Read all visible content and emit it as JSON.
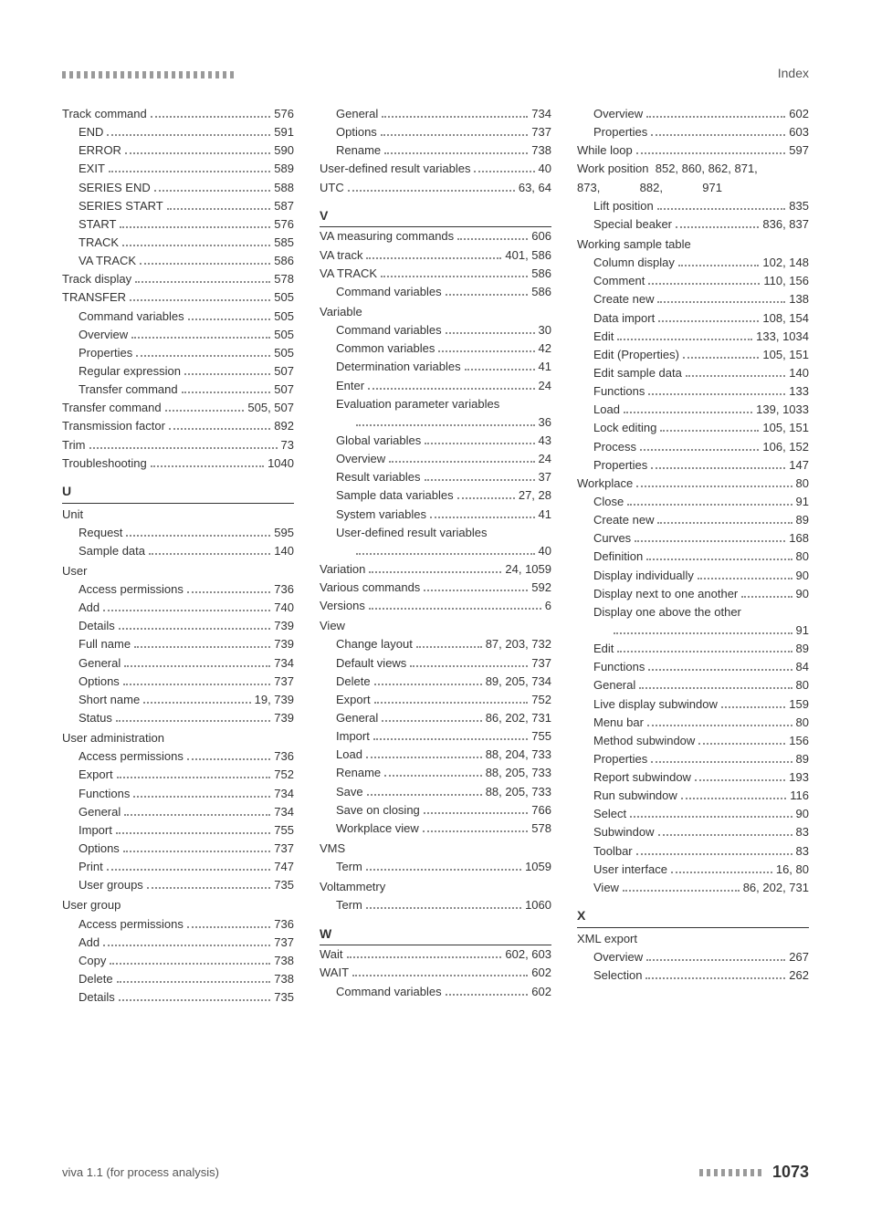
{
  "header": {
    "index_label": "Index"
  },
  "footer": {
    "left": "viva 1.1 (for process analysis)",
    "page_number": "1073"
  },
  "columns": [
    {
      "items": [
        {
          "type": "row",
          "indent": 0,
          "label": "Track command",
          "page": "576"
        },
        {
          "type": "row",
          "indent": 1,
          "label": "END",
          "page": "591"
        },
        {
          "type": "row",
          "indent": 1,
          "label": "ERROR",
          "page": "590"
        },
        {
          "type": "row",
          "indent": 1,
          "label": "EXIT",
          "page": "589"
        },
        {
          "type": "row",
          "indent": 1,
          "label": "SERIES END",
          "page": "588"
        },
        {
          "type": "row",
          "indent": 1,
          "label": "SERIES START",
          "page": "587"
        },
        {
          "type": "row",
          "indent": 1,
          "label": "START",
          "page": "576"
        },
        {
          "type": "row",
          "indent": 1,
          "label": "TRACK",
          "page": "585"
        },
        {
          "type": "row",
          "indent": 1,
          "label": "VA TRACK",
          "page": "586"
        },
        {
          "type": "row",
          "indent": 0,
          "label": "Track display",
          "page": "578"
        },
        {
          "type": "row",
          "indent": 0,
          "label": "TRANSFER",
          "page": "505"
        },
        {
          "type": "row",
          "indent": 1,
          "label": "Command variables",
          "page": "505"
        },
        {
          "type": "row",
          "indent": 1,
          "label": "Overview",
          "page": "505"
        },
        {
          "type": "row",
          "indent": 1,
          "label": "Properties",
          "page": "505"
        },
        {
          "type": "row",
          "indent": 1,
          "label": "Regular expression",
          "page": "507"
        },
        {
          "type": "row",
          "indent": 1,
          "label": "Transfer command",
          "page": "507"
        },
        {
          "type": "row",
          "indent": 0,
          "label": "Transfer command",
          "page": "505, 507"
        },
        {
          "type": "row",
          "indent": 0,
          "label": "Transmission factor",
          "page": "892"
        },
        {
          "type": "row",
          "indent": 0,
          "label": "Trim",
          "page": "73"
        },
        {
          "type": "row",
          "indent": 0,
          "label": "Troubleshooting",
          "page": "1040"
        },
        {
          "type": "letter",
          "text": "U"
        },
        {
          "type": "group",
          "indent": 0,
          "label": "Unit"
        },
        {
          "type": "row",
          "indent": 1,
          "label": "Request",
          "page": "595"
        },
        {
          "type": "row",
          "indent": 1,
          "label": "Sample data",
          "page": "140"
        },
        {
          "type": "group",
          "indent": 0,
          "label": "User"
        },
        {
          "type": "row",
          "indent": 1,
          "label": "Access permissions",
          "page": "736"
        },
        {
          "type": "row",
          "indent": 1,
          "label": "Add",
          "page": "740"
        },
        {
          "type": "row",
          "indent": 1,
          "label": "Details",
          "page": "739"
        },
        {
          "type": "row",
          "indent": 1,
          "label": "Full name",
          "page": "739"
        },
        {
          "type": "row",
          "indent": 1,
          "label": "General",
          "page": "734"
        },
        {
          "type": "row",
          "indent": 1,
          "label": "Options",
          "page": "737"
        },
        {
          "type": "row",
          "indent": 1,
          "label": "Short name",
          "page": "19, 739"
        },
        {
          "type": "row",
          "indent": 1,
          "label": "Status",
          "page": "739"
        },
        {
          "type": "group",
          "indent": 0,
          "label": "User administration"
        },
        {
          "type": "row",
          "indent": 1,
          "label": "Access permissions",
          "page": "736"
        },
        {
          "type": "row",
          "indent": 1,
          "label": "Export",
          "page": "752"
        },
        {
          "type": "row",
          "indent": 1,
          "label": "Functions",
          "page": "734"
        },
        {
          "type": "row",
          "indent": 1,
          "label": "General",
          "page": "734"
        },
        {
          "type": "row",
          "indent": 1,
          "label": "Import",
          "page": "755"
        },
        {
          "type": "row",
          "indent": 1,
          "label": "Options",
          "page": "737"
        },
        {
          "type": "row",
          "indent": 1,
          "label": "Print",
          "page": "747"
        },
        {
          "type": "row",
          "indent": 1,
          "label": "User groups",
          "page": "735"
        },
        {
          "type": "group",
          "indent": 0,
          "label": "User group"
        },
        {
          "type": "row",
          "indent": 1,
          "label": "Access permissions",
          "page": "736"
        },
        {
          "type": "row",
          "indent": 1,
          "label": "Add",
          "page": "737"
        },
        {
          "type": "row",
          "indent": 1,
          "label": "Copy",
          "page": "738"
        },
        {
          "type": "row",
          "indent": 1,
          "label": "Delete",
          "page": "738"
        },
        {
          "type": "row",
          "indent": 1,
          "label": "Details",
          "page": "735"
        }
      ]
    },
    {
      "items": [
        {
          "type": "row",
          "indent": 1,
          "label": "General",
          "page": "734"
        },
        {
          "type": "row",
          "indent": 1,
          "label": "Options",
          "page": "737"
        },
        {
          "type": "row",
          "indent": 1,
          "label": "Rename",
          "page": "738"
        },
        {
          "type": "row",
          "indent": 0,
          "label": "User-defined result variables",
          "page": "40"
        },
        {
          "type": "row",
          "indent": 0,
          "label": "UTC",
          "page": "63, 64"
        },
        {
          "type": "letter",
          "text": "V"
        },
        {
          "type": "row",
          "indent": 0,
          "label": "VA measuring commands",
          "page": "606"
        },
        {
          "type": "row",
          "indent": 0,
          "label": "VA track",
          "page": "401, 586"
        },
        {
          "type": "row",
          "indent": 0,
          "label": "VA TRACK",
          "page": "586"
        },
        {
          "type": "row",
          "indent": 1,
          "label": "Command variables",
          "page": "586"
        },
        {
          "type": "group",
          "indent": 0,
          "label": "Variable"
        },
        {
          "type": "row",
          "indent": 1,
          "label": "Command variables",
          "page": "30"
        },
        {
          "type": "row",
          "indent": 1,
          "label": "Common variables",
          "page": "42"
        },
        {
          "type": "row",
          "indent": 1,
          "label": "Determination variables",
          "page": "41"
        },
        {
          "type": "row",
          "indent": 1,
          "label": "Enter",
          "page": "24"
        },
        {
          "type": "wrap",
          "indent": 1,
          "label": "Evaluation parameter variables",
          "page": "36"
        },
        {
          "type": "row",
          "indent": 1,
          "label": "Global variables",
          "page": "43"
        },
        {
          "type": "row",
          "indent": 1,
          "label": "Overview",
          "page": "24"
        },
        {
          "type": "row",
          "indent": 1,
          "label": "Result variables",
          "page": "37"
        },
        {
          "type": "row",
          "indent": 1,
          "label": "Sample data variables",
          "page": "27, 28"
        },
        {
          "type": "row",
          "indent": 1,
          "label": "System variables",
          "page": "41"
        },
        {
          "type": "wrap",
          "indent": 1,
          "label": "User-defined result variables",
          "page": "40"
        },
        {
          "type": "row",
          "indent": 0,
          "label": "Variation",
          "page": "24, 1059"
        },
        {
          "type": "row",
          "indent": 0,
          "label": "Various commands",
          "page": "592"
        },
        {
          "type": "row",
          "indent": 0,
          "label": "Versions",
          "page": "6"
        },
        {
          "type": "group",
          "indent": 0,
          "label": "View"
        },
        {
          "type": "row",
          "indent": 1,
          "label": "Change layout",
          "page": "87, 203, 732"
        },
        {
          "type": "row",
          "indent": 1,
          "label": "Default views",
          "page": "737"
        },
        {
          "type": "row",
          "indent": 1,
          "label": "Delete",
          "page": "89, 205, 734"
        },
        {
          "type": "row",
          "indent": 1,
          "label": "Export",
          "page": "752"
        },
        {
          "type": "row",
          "indent": 1,
          "label": "General",
          "page": "86, 202, 731"
        },
        {
          "type": "row",
          "indent": 1,
          "label": "Import",
          "page": "755"
        },
        {
          "type": "row",
          "indent": 1,
          "label": "Load",
          "page": "88, 204, 733"
        },
        {
          "type": "row",
          "indent": 1,
          "label": "Rename",
          "page": "88, 205, 733"
        },
        {
          "type": "row",
          "indent": 1,
          "label": "Save",
          "page": "88, 205, 733"
        },
        {
          "type": "row",
          "indent": 1,
          "label": "Save on closing",
          "page": "766"
        },
        {
          "type": "row",
          "indent": 1,
          "label": "Workplace view",
          "page": "578"
        },
        {
          "type": "group",
          "indent": 0,
          "label": "VMS"
        },
        {
          "type": "row",
          "indent": 1,
          "label": "Term",
          "page": "1059"
        },
        {
          "type": "group",
          "indent": 0,
          "label": "Voltammetry"
        },
        {
          "type": "row",
          "indent": 1,
          "label": "Term",
          "page": "1060"
        },
        {
          "type": "letter",
          "text": "W"
        },
        {
          "type": "row",
          "indent": 0,
          "label": "Wait",
          "page": "602, 603"
        },
        {
          "type": "row",
          "indent": 0,
          "label": "WAIT",
          "page": "602"
        },
        {
          "type": "row",
          "indent": 1,
          "label": "Command variables",
          "page": "602"
        }
      ]
    },
    {
      "items": [
        {
          "type": "row",
          "indent": 1,
          "label": "Overview",
          "page": "602"
        },
        {
          "type": "row",
          "indent": 1,
          "label": "Properties",
          "page": "603"
        },
        {
          "type": "row",
          "indent": 0,
          "label": "While loop",
          "page": "597"
        },
        {
          "type": "plain",
          "indent": 0,
          "text": "Work position  852, 860, 862, 871,"
        },
        {
          "type": "plain",
          "indent": 0,
          "text": "873,            882,            971"
        },
        {
          "type": "row",
          "indent": 1,
          "label": "Lift position",
          "page": "835"
        },
        {
          "type": "row",
          "indent": 1,
          "label": "Special beaker",
          "page": "836, 837"
        },
        {
          "type": "group",
          "indent": 0,
          "label": "Working sample table"
        },
        {
          "type": "row",
          "indent": 1,
          "label": "Column display",
          "page": "102, 148"
        },
        {
          "type": "row",
          "indent": 1,
          "label": "Comment",
          "page": "110, 156"
        },
        {
          "type": "row",
          "indent": 1,
          "label": "Create new",
          "page": "138"
        },
        {
          "type": "row",
          "indent": 1,
          "label": "Data import",
          "page": "108, 154"
        },
        {
          "type": "row",
          "indent": 1,
          "label": "Edit",
          "page": "133, 1034"
        },
        {
          "type": "row",
          "indent": 1,
          "label": "Edit (Properties)",
          "page": "105, 151"
        },
        {
          "type": "row",
          "indent": 1,
          "label": "Edit sample data",
          "page": "140"
        },
        {
          "type": "row",
          "indent": 1,
          "label": "Functions",
          "page": "133"
        },
        {
          "type": "row",
          "indent": 1,
          "label": "Load",
          "page": "139, 1033"
        },
        {
          "type": "row",
          "indent": 1,
          "label": "Lock editing",
          "page": "105, 151"
        },
        {
          "type": "row",
          "indent": 1,
          "label": "Process",
          "page": "106, 152"
        },
        {
          "type": "row",
          "indent": 1,
          "label": "Properties",
          "page": "147"
        },
        {
          "type": "row",
          "indent": 0,
          "label": "Workplace",
          "page": "80"
        },
        {
          "type": "row",
          "indent": 1,
          "label": "Close",
          "page": "91"
        },
        {
          "type": "row",
          "indent": 1,
          "label": "Create new",
          "page": "89"
        },
        {
          "type": "row",
          "indent": 1,
          "label": "Curves",
          "page": "168"
        },
        {
          "type": "row",
          "indent": 1,
          "label": "Definition",
          "page": "80"
        },
        {
          "type": "row",
          "indent": 1,
          "label": "Display individually",
          "page": "90"
        },
        {
          "type": "row",
          "indent": 1,
          "label": "Display next to one another",
          "page": "90"
        },
        {
          "type": "wrap",
          "indent": 1,
          "label": "Display one above the other",
          "page": "91"
        },
        {
          "type": "row",
          "indent": 1,
          "label": "Edit",
          "page": "89"
        },
        {
          "type": "row",
          "indent": 1,
          "label": "Functions",
          "page": "84"
        },
        {
          "type": "row",
          "indent": 1,
          "label": "General",
          "page": "80"
        },
        {
          "type": "row",
          "indent": 1,
          "label": "Live display subwindow",
          "page": "159"
        },
        {
          "type": "row",
          "indent": 1,
          "label": "Menu bar",
          "page": "80"
        },
        {
          "type": "row",
          "indent": 1,
          "label": "Method subwindow",
          "page": "156"
        },
        {
          "type": "row",
          "indent": 1,
          "label": "Properties",
          "page": "89"
        },
        {
          "type": "row",
          "indent": 1,
          "label": "Report subwindow",
          "page": "193"
        },
        {
          "type": "row",
          "indent": 1,
          "label": "Run subwindow",
          "page": "116"
        },
        {
          "type": "row",
          "indent": 1,
          "label": "Select",
          "page": "90"
        },
        {
          "type": "row",
          "indent": 1,
          "label": "Subwindow",
          "page": "83"
        },
        {
          "type": "row",
          "indent": 1,
          "label": "Toolbar",
          "page": "83"
        },
        {
          "type": "row",
          "indent": 1,
          "label": "User interface",
          "page": "16, 80"
        },
        {
          "type": "row",
          "indent": 1,
          "label": "View",
          "page": "86, 202, 731"
        },
        {
          "type": "letter",
          "text": "X"
        },
        {
          "type": "group",
          "indent": 0,
          "label": "XML export"
        },
        {
          "type": "row",
          "indent": 1,
          "label": "Overview",
          "page": "267"
        },
        {
          "type": "row",
          "indent": 1,
          "label": "Selection",
          "page": "262"
        }
      ]
    }
  ]
}
